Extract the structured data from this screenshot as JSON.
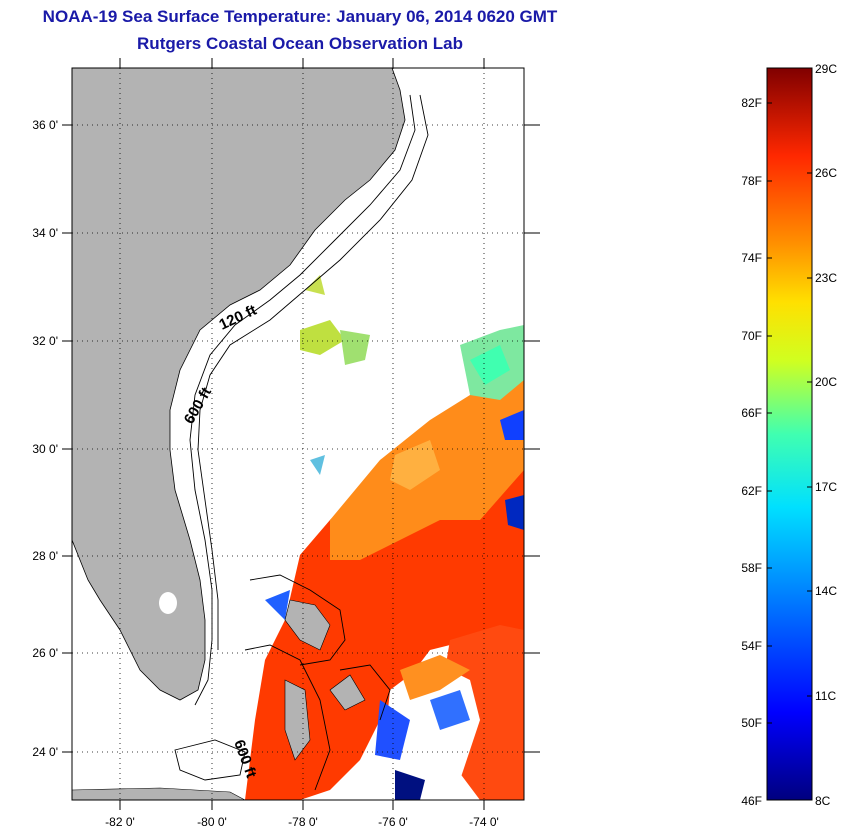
{
  "title": {
    "line1": "NOAA-19 Sea Surface Temperature:  January 06, 2014 0620 GMT",
    "line2": "Rutgers Coastal Ocean Observation Lab"
  },
  "map": {
    "lon_labels": [
      "-82 0'",
      "-80 0'",
      "-78 0'",
      "-76 0'",
      "-74 0'"
    ],
    "lat_labels": [
      "36 0'",
      "34 0'",
      "32 0'",
      "30 0'",
      "28 0'",
      "26 0'",
      "24 0'"
    ],
    "contour_labels": [
      "120 ft",
      "600 ft",
      "600 ft"
    ],
    "colors": {
      "land": "#b3b3b3",
      "no_data": "#ffffff",
      "warm": "#ff3a00",
      "orange": "#ff8c1a"
    }
  },
  "colorbar": {
    "fahrenheit_labels": [
      "82F",
      "78F",
      "74F",
      "70F",
      "66F",
      "62F",
      "58F",
      "54F",
      "50F",
      "46F"
    ],
    "celsius_labels": [
      "29C",
      "26C",
      "23C",
      "20C",
      "17C",
      "14C",
      "11C",
      "8C"
    ],
    "range_c": [
      8,
      29
    ]
  }
}
